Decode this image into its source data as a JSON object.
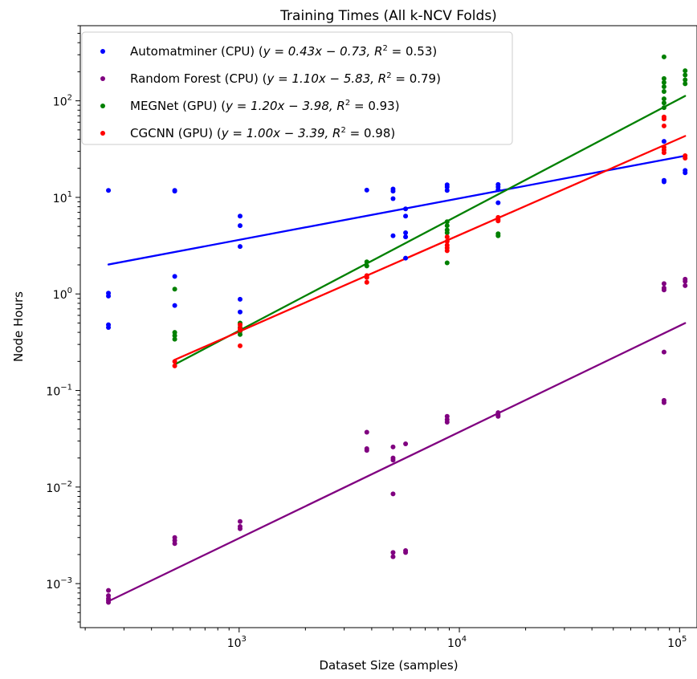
{
  "chart_data": {
    "type": "scatter",
    "title": "Training Times (All k-NCV Folds)",
    "xlabel": "Dataset Size (samples)",
    "ylabel": "Node Hours",
    "xscale": "log",
    "yscale": "log",
    "xlim": [
      190,
      120000
    ],
    "ylim": [
      0.00035,
      600
    ],
    "x_ticks": [
      {
        "value": 1000,
        "label": "10",
        "exp": "3"
      },
      {
        "value": 10000,
        "label": "10",
        "exp": "4"
      },
      {
        "value": 100000,
        "label": "10",
        "exp": "5"
      }
    ],
    "y_ticks": [
      {
        "value": 0.001,
        "label": "10",
        "exp": "−3"
      },
      {
        "value": 0.01,
        "label": "10",
        "exp": "−2"
      },
      {
        "value": 0.1,
        "label": "10",
        "exp": "−1"
      },
      {
        "value": 1,
        "label": "10",
        "exp": "0"
      },
      {
        "value": 10,
        "label": "10",
        "exp": "1"
      },
      {
        "value": 100,
        "label": "10",
        "exp": "2"
      }
    ],
    "grid": false,
    "legend_position": "top-left",
    "series": [
      {
        "name": "Automatminer (CPU)",
        "color": "#0000ff",
        "fit": {
          "slope": 0.43,
          "intercept": -0.73,
          "r2": 0.53,
          "eq_text": "y = 0.43x − 0.73, R",
          "r2_text": " = 0.53"
        },
        "points": [
          [
            255,
            11.8
          ],
          [
            255,
            1.02
          ],
          [
            255,
            0.95
          ],
          [
            255,
            0.48
          ],
          [
            255,
            0.45
          ],
          [
            510,
            11.8
          ],
          [
            510,
            11.6
          ],
          [
            510,
            1.52
          ],
          [
            510,
            0.76
          ],
          [
            1010,
            6.4
          ],
          [
            1010,
            5.1
          ],
          [
            1010,
            3.1
          ],
          [
            1010,
            0.88
          ],
          [
            1010,
            0.65
          ],
          [
            3800,
            11.9
          ],
          [
            5000,
            12.2
          ],
          [
            5000,
            11.6
          ],
          [
            5000,
            9.7
          ],
          [
            5000,
            4.0
          ],
          [
            5700,
            7.6
          ],
          [
            5700,
            6.4
          ],
          [
            5700,
            4.3
          ],
          [
            5700,
            3.9
          ],
          [
            5700,
            2.35
          ],
          [
            8800,
            13.5
          ],
          [
            8800,
            12.8
          ],
          [
            8800,
            11.8
          ],
          [
            15000,
            13.6
          ],
          [
            15000,
            12.8
          ],
          [
            15000,
            12.0
          ],
          [
            15000,
            8.8
          ],
          [
            85000,
            38
          ],
          [
            85000,
            15.0
          ],
          [
            85000,
            14.5
          ],
          [
            106000,
            19
          ],
          [
            106000,
            18
          ]
        ]
      },
      {
        "name": "Random Forest (CPU)",
        "color": "#800080",
        "fit": {
          "slope": 1.1,
          "intercept": -5.83,
          "r2": 0.79,
          "eq_text": "y = 1.10x − 5.83, R",
          "r2_text": " = 0.79"
        },
        "points": [
          [
            255,
            0.00085
          ],
          [
            255,
            0.00075
          ],
          [
            255,
            0.0007
          ],
          [
            255,
            0.00067
          ],
          [
            255,
            0.00064
          ],
          [
            510,
            0.003
          ],
          [
            510,
            0.0028
          ],
          [
            510,
            0.0026
          ],
          [
            1010,
            0.0044
          ],
          [
            1010,
            0.0039
          ],
          [
            1010,
            0.0037
          ],
          [
            3800,
            0.037
          ],
          [
            3800,
            0.025
          ],
          [
            3800,
            0.024
          ],
          [
            5000,
            0.026
          ],
          [
            5000,
            0.02
          ],
          [
            5000,
            0.019
          ],
          [
            5000,
            0.0085
          ],
          [
            5000,
            0.0021
          ],
          [
            5000,
            0.0019
          ],
          [
            5700,
            0.028
          ],
          [
            5700,
            0.0022
          ],
          [
            5700,
            0.0021
          ],
          [
            8800,
            0.054
          ],
          [
            8800,
            0.05
          ],
          [
            8800,
            0.047
          ],
          [
            15000,
            0.059
          ],
          [
            15000,
            0.056
          ],
          [
            15000,
            0.054
          ],
          [
            85000,
            1.28
          ],
          [
            85000,
            1.15
          ],
          [
            85000,
            1.1
          ],
          [
            85000,
            0.25
          ],
          [
            85000,
            0.079
          ],
          [
            85000,
            0.075
          ],
          [
            106000,
            1.42
          ],
          [
            106000,
            1.35
          ],
          [
            106000,
            1.22
          ]
        ]
      },
      {
        "name": "MEGNet (GPU)",
        "color": "#008000",
        "fit": {
          "slope": 1.2,
          "intercept": -3.98,
          "r2": 0.93,
          "eq_text": "y = 1.20x − 3.98, R",
          "r2_text": " = 0.93"
        },
        "points": [
          [
            510,
            1.12
          ],
          [
            510,
            0.4
          ],
          [
            510,
            0.37
          ],
          [
            510,
            0.34
          ],
          [
            1010,
            0.5
          ],
          [
            1010,
            0.45
          ],
          [
            1010,
            0.41
          ],
          [
            1010,
            0.38
          ],
          [
            3800,
            2.15
          ],
          [
            3800,
            1.95
          ],
          [
            8800,
            5.6
          ],
          [
            8800,
            5.1
          ],
          [
            8800,
            4.6
          ],
          [
            8800,
            4.3
          ],
          [
            8800,
            2.1
          ],
          [
            15000,
            4.2
          ],
          [
            15000,
            4.0
          ],
          [
            85000,
            285
          ],
          [
            85000,
            170
          ],
          [
            85000,
            155
          ],
          [
            85000,
            140
          ],
          [
            85000,
            125
          ],
          [
            85000,
            105
          ],
          [
            85000,
            95
          ],
          [
            85000,
            85
          ],
          [
            106000,
            205
          ],
          [
            106000,
            185
          ],
          [
            106000,
            165
          ],
          [
            106000,
            150
          ]
        ]
      },
      {
        "name": "CGCNN (GPU)",
        "color": "#ff0000",
        "fit": {
          "slope": 1.0,
          "intercept": -3.39,
          "r2": 0.98,
          "eq_text": "y = 1.00x − 3.39, R",
          "r2_text": " = 0.98"
        },
        "points": [
          [
            510,
            0.2
          ],
          [
            510,
            0.18
          ],
          [
            1010,
            0.48
          ],
          [
            1010,
            0.44
          ],
          [
            1010,
            0.42
          ],
          [
            1010,
            0.29
          ],
          [
            3800,
            1.55
          ],
          [
            3800,
            1.48
          ],
          [
            3800,
            1.32
          ],
          [
            8800,
            3.9
          ],
          [
            8800,
            3.5
          ],
          [
            8800,
            3.2
          ],
          [
            8800,
            3.0
          ],
          [
            8800,
            2.8
          ],
          [
            15000,
            6.2
          ],
          [
            15000,
            5.9
          ],
          [
            15000,
            5.7
          ],
          [
            85000,
            68
          ],
          [
            85000,
            65
          ],
          [
            85000,
            55
          ],
          [
            85000,
            33
          ],
          [
            85000,
            31
          ],
          [
            85000,
            29
          ],
          [
            106000,
            27
          ],
          [
            106000,
            25.5
          ]
        ]
      }
    ],
    "fit_lines": [
      {
        "series": 0,
        "x": [
          255,
          106000
        ]
      },
      {
        "series": 1,
        "x": [
          255,
          106000
        ]
      },
      {
        "series": 2,
        "x": [
          510,
          106000
        ]
      },
      {
        "series": 3,
        "x": [
          510,
          106000
        ]
      }
    ]
  }
}
